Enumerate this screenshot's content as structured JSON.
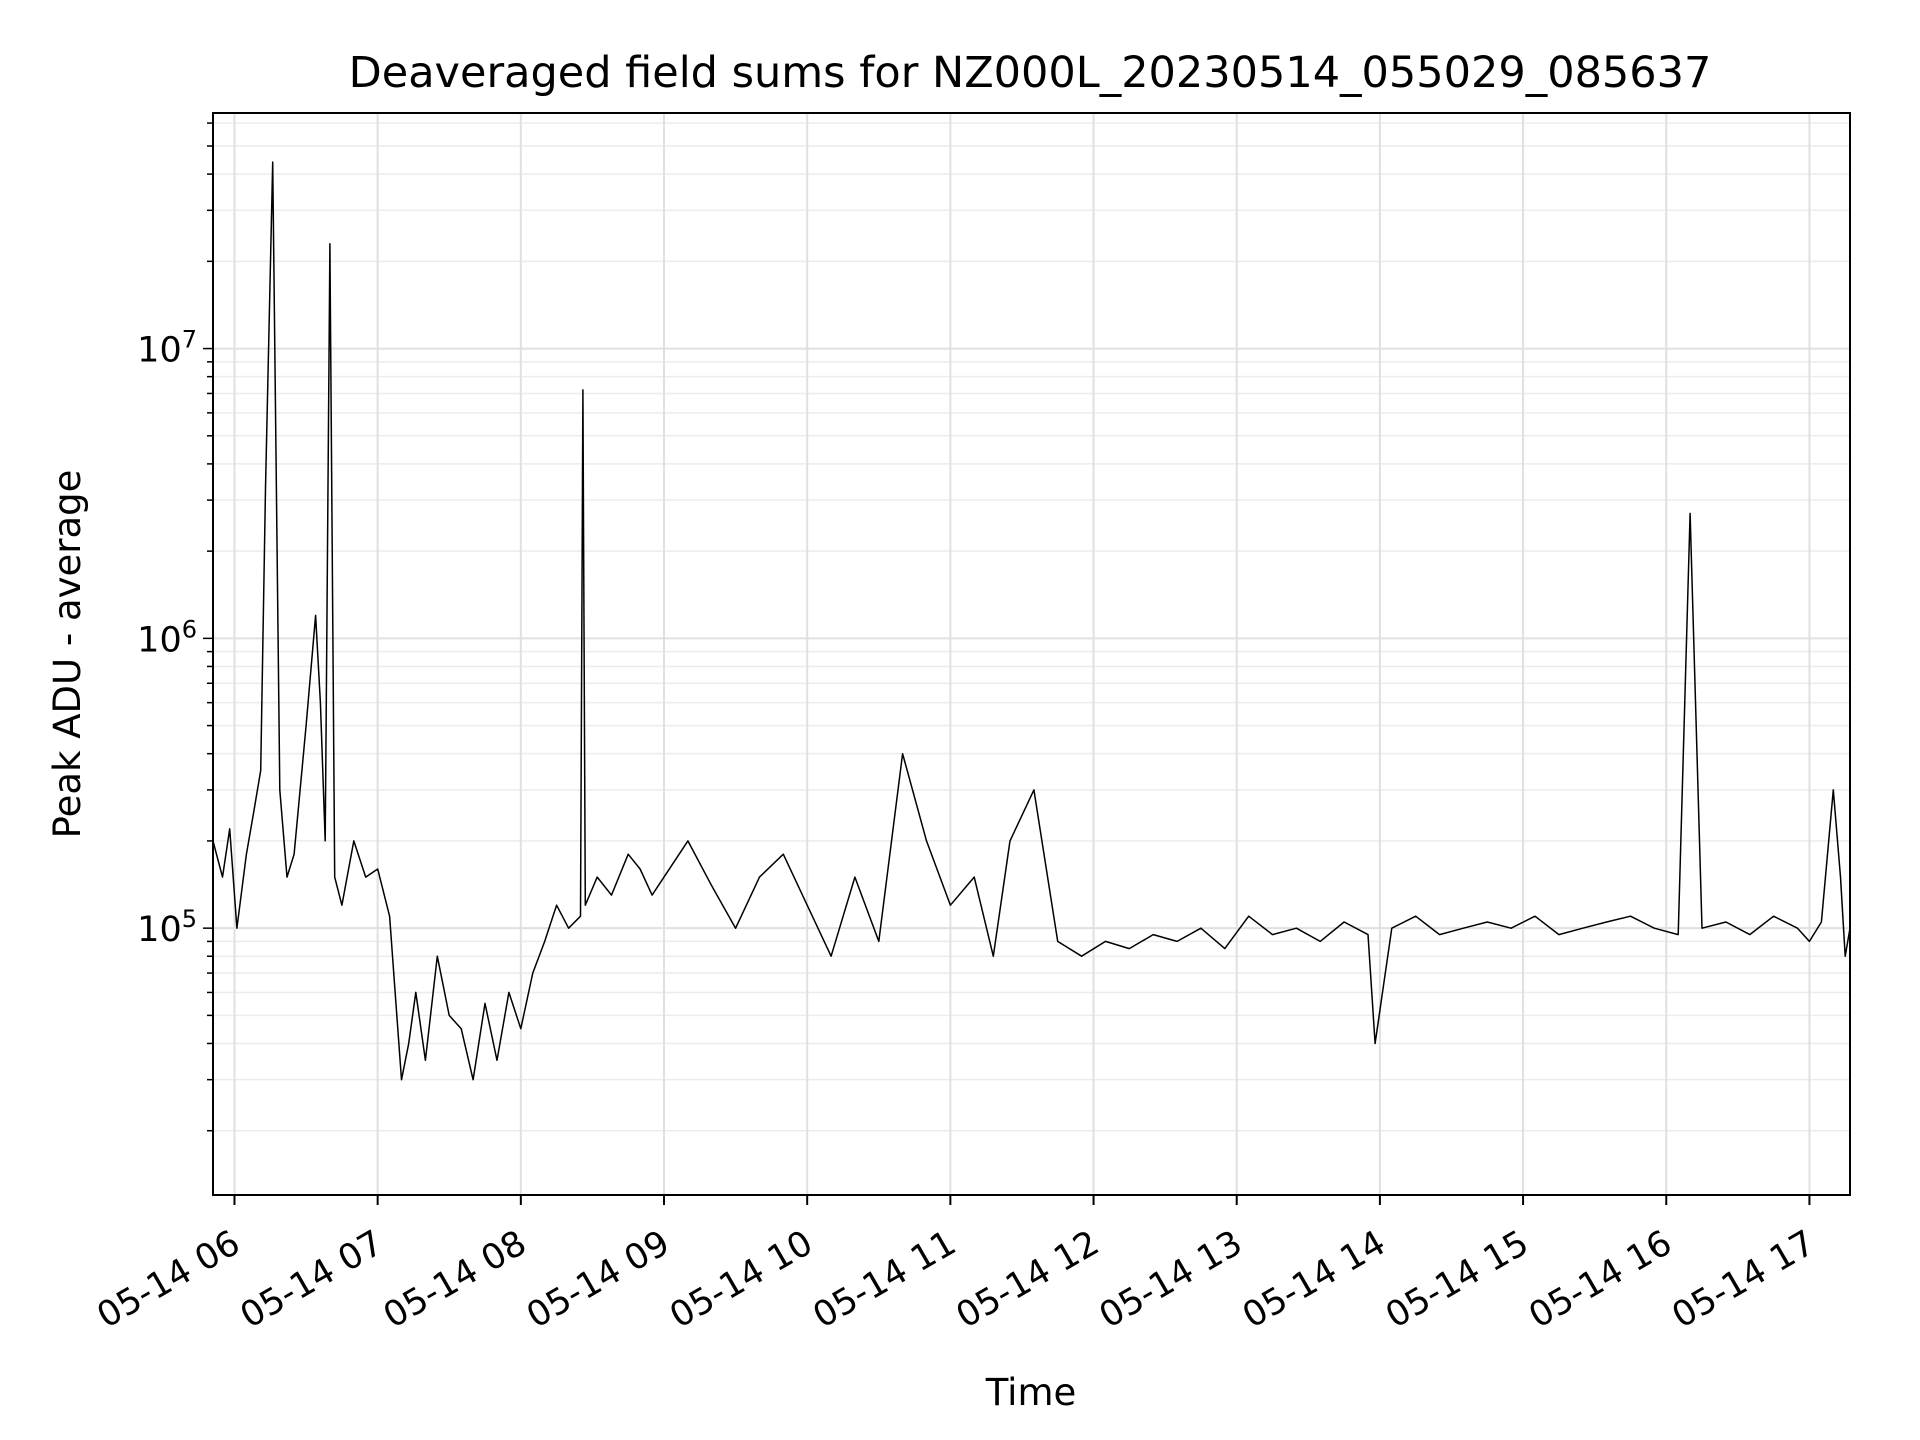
{
  "chart_data": {
    "type": "line",
    "title": "Deaveraged field sums for NZ000L_20230514_055029_085637",
    "xlabel": "Time",
    "ylabel": "Peak ADU - average",
    "yscale": "log",
    "xlim": [
      "2023-05-14 05:51",
      "2023-05-14 17:17"
    ],
    "ylim": [
      12000,
      65000000
    ],
    "xticks": [
      "2023-05-14 06:00",
      "2023-05-14 07:00",
      "2023-05-14 08:00",
      "2023-05-14 09:00",
      "2023-05-14 10:00",
      "2023-05-14 11:00",
      "2023-05-14 12:00",
      "2023-05-14 13:00",
      "2023-05-14 14:00",
      "2023-05-14 15:00",
      "2023-05-14 16:00",
      "2023-05-14 17:00"
    ],
    "xtick_labels": [
      "05-14 06",
      "05-14 07",
      "05-14 08",
      "05-14 09",
      "05-14 10",
      "05-14 11",
      "05-14 12",
      "05-14 13",
      "05-14 14",
      "05-14 15",
      "05-14 16",
      "05-14 17"
    ],
    "yticks": [
      100000,
      1000000,
      10000000
    ],
    "ytick_labels": [
      {
        "base": "10",
        "exp": "5"
      },
      {
        "base": "10",
        "exp": "6"
      },
      {
        "base": "10",
        "exp": "7"
      }
    ],
    "grid": true,
    "series": [
      {
        "color": "#000000",
        "x": [
          "2023-05-14 05:51",
          "2023-05-14 05:55",
          "2023-05-14 05:58",
          "2023-05-14 06:01",
          "2023-05-14 06:05",
          "2023-05-14 06:08",
          "2023-05-14 06:11",
          "2023-05-14 06:13",
          "2023-05-14 06:16",
          "2023-05-14 06:19",
          "2023-05-14 06:22",
          "2023-05-14 06:25",
          "2023-05-14 06:30",
          "2023-05-14 06:34",
          "2023-05-14 06:36",
          "2023-05-14 06:38",
          "2023-05-14 06:40",
          "2023-05-14 06:42",
          "2023-05-14 06:45",
          "2023-05-14 06:50",
          "2023-05-14 06:55",
          "2023-05-14 07:00",
          "2023-05-14 07:05",
          "2023-05-14 07:10",
          "2023-05-14 07:13",
          "2023-05-14 07:16",
          "2023-05-14 07:20",
          "2023-05-14 07:25",
          "2023-05-14 07:30",
          "2023-05-14 07:35",
          "2023-05-14 07:40",
          "2023-05-14 07:45",
          "2023-05-14 07:50",
          "2023-05-14 07:55",
          "2023-05-14 08:00",
          "2023-05-14 08:05",
          "2023-05-14 08:10",
          "2023-05-14 08:15",
          "2023-05-14 08:20",
          "2023-05-14 08:25",
          "2023-05-14 08:26",
          "2023-05-14 08:27",
          "2023-05-14 08:32",
          "2023-05-14 08:38",
          "2023-05-14 08:45",
          "2023-05-14 08:50",
          "2023-05-14 08:55",
          "2023-05-14 09:00",
          "2023-05-14 09:10",
          "2023-05-14 09:20",
          "2023-05-14 09:30",
          "2023-05-14 09:40",
          "2023-05-14 09:50",
          "2023-05-14 10:00",
          "2023-05-14 10:10",
          "2023-05-14 10:20",
          "2023-05-14 10:30",
          "2023-05-14 10:40",
          "2023-05-14 10:50",
          "2023-05-14 11:00",
          "2023-05-14 11:10",
          "2023-05-14 11:18",
          "2023-05-14 11:25",
          "2023-05-14 11:35",
          "2023-05-14 11:45",
          "2023-05-14 11:55",
          "2023-05-14 12:05",
          "2023-05-14 12:15",
          "2023-05-14 12:25",
          "2023-05-14 12:35",
          "2023-05-14 12:45",
          "2023-05-14 12:55",
          "2023-05-14 13:05",
          "2023-05-14 13:15",
          "2023-05-14 13:25",
          "2023-05-14 13:35",
          "2023-05-14 13:45",
          "2023-05-14 13:55",
          "2023-05-14 13:58",
          "2023-05-14 14:05",
          "2023-05-14 14:15",
          "2023-05-14 14:25",
          "2023-05-14 14:35",
          "2023-05-14 14:45",
          "2023-05-14 14:55",
          "2023-05-14 15:05",
          "2023-05-14 15:15",
          "2023-05-14 15:25",
          "2023-05-14 15:35",
          "2023-05-14 15:45",
          "2023-05-14 15:55",
          "2023-05-14 16:05",
          "2023-05-14 16:10",
          "2023-05-14 16:15",
          "2023-05-14 16:25",
          "2023-05-14 16:35",
          "2023-05-14 16:45",
          "2023-05-14 16:55",
          "2023-05-14 17:00",
          "2023-05-14 17:05",
          "2023-05-14 17:10",
          "2023-05-14 17:13",
          "2023-05-14 17:15",
          "2023-05-14 17:17"
        ],
        "y": [
          200000,
          150000,
          220000,
          100000,
          180000,
          250000,
          350000,
          3300000,
          44000000,
          300000,
          150000,
          180000,
          500000,
          1200000,
          600000,
          200000,
          23000000,
          150000,
          120000,
          200000,
          150000,
          160000,
          110000,
          30000,
          40000,
          60000,
          35000,
          80000,
          50000,
          45000,
          30000,
          55000,
          35000,
          60000,
          45000,
          70000,
          90000,
          120000,
          100000,
          110000,
          7200000,
          120000,
          150000,
          130000,
          180000,
          160000,
          130000,
          150000,
          200000,
          140000,
          100000,
          150000,
          180000,
          120000,
          80000,
          150000,
          90000,
          400000,
          200000,
          120000,
          150000,
          80000,
          200000,
          300000,
          90000,
          80000,
          90000,
          85000,
          95000,
          90000,
          100000,
          85000,
          110000,
          95000,
          100000,
          90000,
          105000,
          95000,
          40000,
          100000,
          110000,
          95000,
          100000,
          105000,
          100000,
          110000,
          95000,
          100000,
          105000,
          110000,
          100000,
          95000,
          2700000,
          100000,
          105000,
          95000,
          110000,
          100000,
          90000,
          105000,
          300000,
          150000,
          80000,
          100000
        ]
      }
    ]
  }
}
